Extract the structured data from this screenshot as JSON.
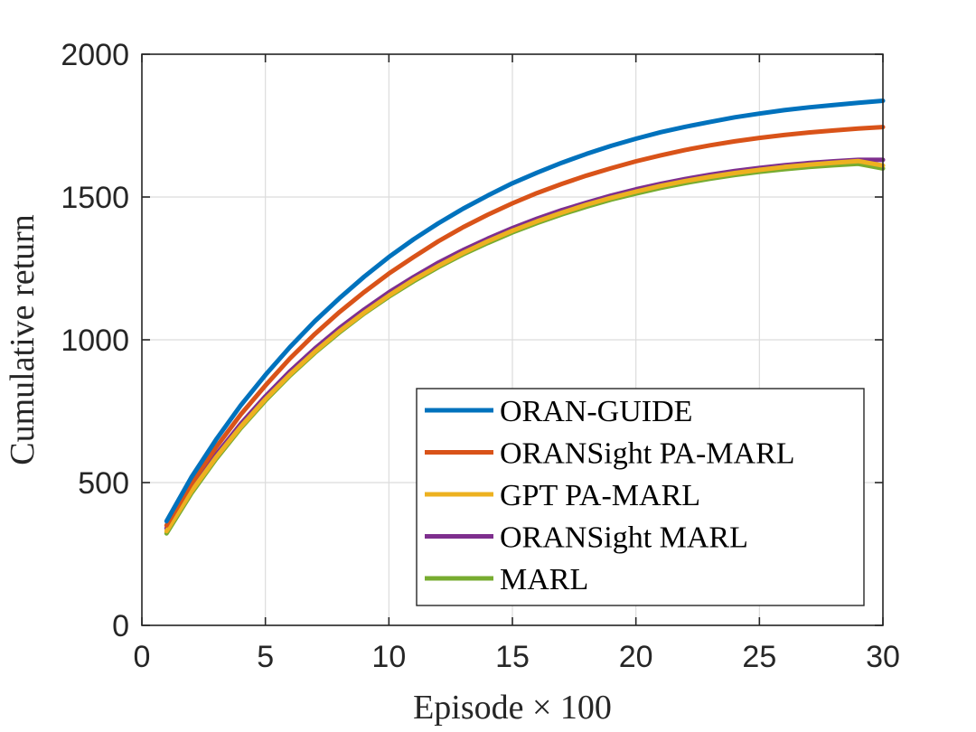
{
  "chart_data": {
    "type": "line",
    "title": "",
    "xlabel": "Episode × 100",
    "ylabel": "Cumulative return",
    "xlim": [
      0,
      30
    ],
    "ylim": [
      0,
      2000
    ],
    "xticks": [
      0,
      5,
      10,
      15,
      20,
      25,
      30
    ],
    "yticks": [
      0,
      500,
      1000,
      1500,
      2000
    ],
    "grid": true,
    "legend_position": "bottom-right",
    "x": [
      1,
      2,
      3,
      4,
      5,
      6,
      7,
      8,
      9,
      10,
      11,
      12,
      13,
      14,
      15,
      16,
      17,
      18,
      19,
      20,
      21,
      22,
      23,
      24,
      25,
      26,
      27,
      28,
      29,
      30
    ],
    "series": [
      {
        "name": "ORAN-GUIDE",
        "color": "#0072BD",
        "values": [
          365,
          518,
          650,
          770,
          877,
          975,
          1065,
          1146,
          1221,
          1290,
          1352,
          1408,
          1459,
          1505,
          1548,
          1585,
          1620,
          1651,
          1679,
          1704,
          1727,
          1746,
          1763,
          1779,
          1792,
          1804,
          1814,
          1822,
          1830,
          1837
        ]
      },
      {
        "name": "ORANSight PA-MARL",
        "color": "#D95319",
        "values": [
          350,
          496,
          623,
          738,
          840,
          935,
          1020,
          1097,
          1167,
          1232,
          1290,
          1345,
          1394,
          1438,
          1478,
          1514,
          1546,
          1575,
          1601,
          1625,
          1646,
          1665,
          1681,
          1695,
          1707,
          1717,
          1726,
          1733,
          1740,
          1745
        ]
      },
      {
        "name": "GPT PA-MARL",
        "color": "#EDB120",
        "values": [
          330,
          469,
          588,
          695,
          792,
          879,
          958,
          1030,
          1095,
          1155,
          1210,
          1259,
          1304,
          1345,
          1382,
          1415,
          1445,
          1473,
          1497,
          1519,
          1539,
          1556,
          1571,
          1584,
          1595,
          1605,
          1613,
          1620,
          1626,
          1610
        ]
      },
      {
        "name": "ORANSight MARL",
        "color": "#7E2F8E",
        "values": [
          340,
          478,
          597,
          705,
          802,
          890,
          969,
          1041,
          1106,
          1166,
          1220,
          1270,
          1314,
          1354,
          1391,
          1424,
          1454,
          1480,
          1505,
          1527,
          1546,
          1563,
          1578,
          1591,
          1602,
          1611,
          1619,
          1625,
          1630,
          1630
        ]
      },
      {
        "name": "MARL",
        "color": "#77AC30",
        "values": [
          322,
          462,
          582,
          690,
          787,
          875,
          954,
          1026,
          1092,
          1151,
          1205,
          1254,
          1299,
          1339,
          1376,
          1409,
          1439,
          1466,
          1491,
          1512,
          1532,
          1549,
          1564,
          1577,
          1588,
          1597,
          1605,
          1611,
          1616,
          1600
        ]
      }
    ]
  }
}
